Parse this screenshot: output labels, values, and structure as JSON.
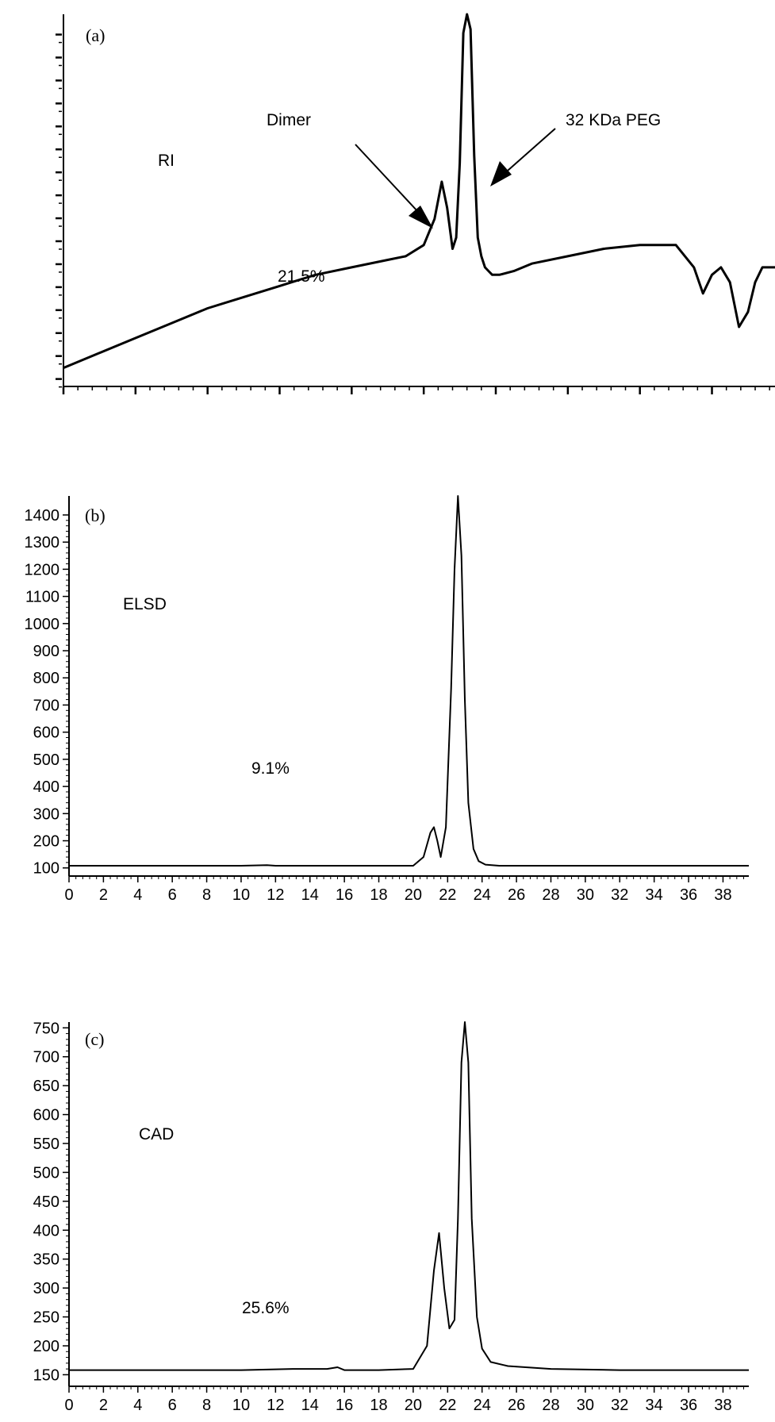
{
  "chart_data": [
    {
      "type": "line",
      "panel_label": "(a)",
      "detector_label": "RI",
      "annotation_percent": "21.5%",
      "arrow_labels": {
        "dimer": "Dimer",
        "peg": "32 KDa PEG"
      },
      "xlim": [
        0,
        39.5
      ],
      "ylim": [
        0,
        1
      ],
      "x_tick_labels_printed": false,
      "y_tick_labels_printed": false,
      "series": [
        {
          "x": [
            0,
            2,
            4,
            6,
            8,
            10,
            12,
            14,
            16,
            18,
            19,
            20,
            20.6,
            21.0,
            21.3,
            21.6,
            21.8,
            22.0,
            22.2,
            22.4,
            22.6,
            22.8,
            23.0,
            23.2,
            23.4,
            23.6,
            23.8,
            24.2,
            25,
            26,
            28,
            30,
            32,
            34,
            35,
            35.5,
            36.0,
            36.5,
            37.0,
            37.5,
            38.0,
            38.4,
            38.8,
            39.2,
            39.5
          ],
          "y": [
            0.05,
            0.09,
            0.13,
            0.17,
            0.21,
            0.24,
            0.27,
            0.3,
            0.32,
            0.34,
            0.35,
            0.38,
            0.45,
            0.55,
            0.48,
            0.37,
            0.4,
            0.6,
            0.95,
            1.0,
            0.96,
            0.62,
            0.4,
            0.35,
            0.32,
            0.31,
            0.3,
            0.3,
            0.31,
            0.33,
            0.35,
            0.37,
            0.38,
            0.38,
            0.32,
            0.25,
            0.3,
            0.32,
            0.28,
            0.16,
            0.2,
            0.28,
            0.32,
            0.32,
            0.32
          ]
        }
      ]
    },
    {
      "type": "line",
      "panel_label": "(b)",
      "detector_label": "ELSD",
      "annotation_percent": "9.1%",
      "xlim": [
        0,
        39.5
      ],
      "ylim": [
        70,
        1470
      ],
      "x_ticks": [
        0,
        2,
        4,
        6,
        8,
        10,
        12,
        14,
        16,
        18,
        20,
        22,
        24,
        26,
        28,
        30,
        32,
        34,
        36,
        38
      ],
      "y_ticks": [
        100,
        200,
        300,
        400,
        500,
        600,
        700,
        800,
        900,
        1000,
        1100,
        1200,
        1300,
        1400
      ],
      "series": [
        {
          "x": [
            0,
            5,
            10,
            11.5,
            12,
            15,
            20,
            20.6,
            21.0,
            21.2,
            21.4,
            21.6,
            21.9,
            22.2,
            22.4,
            22.6,
            22.8,
            23.0,
            23.2,
            23.5,
            23.8,
            24.2,
            25,
            30,
            35,
            39.5
          ],
          "y": [
            108,
            108,
            108,
            110,
            108,
            108,
            108,
            140,
            230,
            250,
            200,
            140,
            250,
            760,
            1200,
            1470,
            1250,
            720,
            340,
            170,
            125,
            112,
            108,
            108,
            108,
            108
          ]
        }
      ]
    },
    {
      "type": "line",
      "panel_label": "(c)",
      "detector_label": "CAD",
      "annotation_percent": "25.6%",
      "xlim": [
        0,
        39.5
      ],
      "ylim": [
        130,
        760
      ],
      "x_ticks": [
        0,
        2,
        4,
        6,
        8,
        10,
        12,
        14,
        16,
        18,
        20,
        22,
        24,
        26,
        28,
        30,
        32,
        34,
        36,
        38
      ],
      "y_ticks": [
        150,
        200,
        250,
        300,
        350,
        400,
        450,
        500,
        550,
        600,
        650,
        700,
        750
      ],
      "series": [
        {
          "x": [
            0,
            5,
            10,
            13,
            15,
            15.6,
            16,
            18,
            20,
            20.8,
            21.2,
            21.5,
            21.8,
            22.1,
            22.4,
            22.6,
            22.8,
            23.0,
            23.2,
            23.4,
            23.7,
            24.0,
            24.5,
            25.5,
            28,
            32,
            36,
            39.5
          ],
          "y": [
            158,
            158,
            158,
            160,
            160,
            163,
            158,
            158,
            160,
            200,
            330,
            395,
            300,
            230,
            245,
            420,
            690,
            760,
            690,
            420,
            250,
            195,
            172,
            165,
            160,
            158,
            158,
            158
          ]
        }
      ]
    }
  ]
}
